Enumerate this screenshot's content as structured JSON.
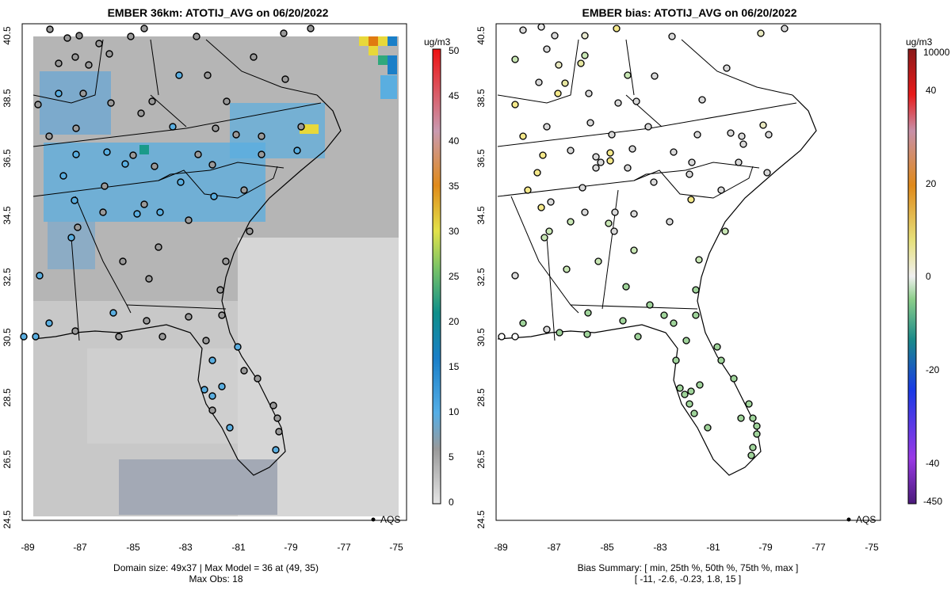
{
  "left_panel": {
    "title": "EMBER 36km: ATOTIJ_AVG on 06/20/2022",
    "caption_line1": "Domain size: 49x37 | Max Model = 36 at (49, 35)",
    "caption_line2": "Max Obs: 18",
    "legend_label": "AQS",
    "colorbar_unit": "ug/m3",
    "colorbar_ticks": [
      "0",
      "5",
      "10",
      "15",
      "20",
      "25",
      "30",
      "35",
      "40",
      "45",
      "50"
    ]
  },
  "right_panel": {
    "title": "EMBER bias: ATOTIJ_AVG on 06/20/2022",
    "caption_line1": "Bias Summary: [ min, 25th %, 50th %, 75th %, max ]",
    "caption_line2": "[ -11,   -2.6,   -0.23,   1.8,   15 ]",
    "legend_label": "AQS",
    "colorbar_unit": "ug/m3",
    "colorbar_ticks": [
      "-450",
      "-40",
      "-20",
      "0",
      "20",
      "40",
      "10000"
    ]
  },
  "axes": {
    "x_ticks": [
      "-89",
      "-87",
      "-85",
      "-83",
      "-81",
      "-79",
      "-77",
      "-75"
    ],
    "y_ticks": [
      "40.5",
      "38.5",
      "36.5",
      "34.5",
      "32.5",
      "30.5",
      "28.5",
      "26.5",
      "24.5"
    ]
  },
  "colors": {
    "model_gray": "#a9a9a9",
    "model_blue": "#5aaee0",
    "model_yellow": "#e8d83a",
    "model_orange": "#e07a10",
    "model_green": "#2fa87c",
    "bias_green": "#9fd39a",
    "bias_yellow": "#f4e88a",
    "bias_gray": "#d9d9d9"
  }
}
